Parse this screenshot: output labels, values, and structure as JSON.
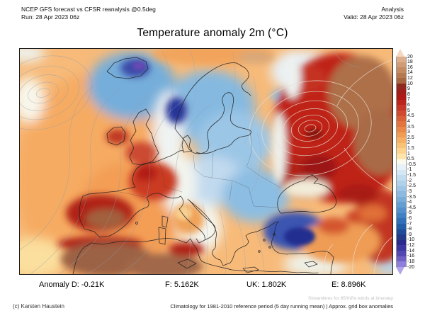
{
  "header": {
    "left_line1": "NCEP GFS forecast vs CFSR reanalysis @0.5deg",
    "left_line2": "Run: 28 Apr 2023 06z",
    "right_line1": "Analysis",
    "right_line2": "Valid: 28 Apr 2023 06z"
  },
  "title": "Temperature anomaly 2m (°C)",
  "chart_data": {
    "type": "heatmap",
    "title": "Temperature anomaly 2m (°C)",
    "units": "K",
    "colorbar_range": [
      -20,
      20
    ],
    "summary_values": {
      "D": -0.21,
      "F": 5.162,
      "UK": 1.802,
      "E": 8.896
    },
    "regions": [
      {
        "area": "North Atlantic",
        "anomaly": "+1 to +3"
      },
      {
        "area": "Iceland",
        "anomaly": "-8 to -14"
      },
      {
        "area": "Scandinavia / Baltic",
        "anomaly": "-2 to -8"
      },
      {
        "area": "Central Europe / Balkans",
        "anomaly": "-1 to -4"
      },
      {
        "area": "Aegean / Turkey",
        "anomaly": "-6 to -10"
      },
      {
        "area": "British Isles / France",
        "anomaly": "+4 to +8"
      },
      {
        "area": "Iberia / North Africa",
        "anomaly": "+8 to +16"
      },
      {
        "area": "Western Russia / Caucasus",
        "anomaly": "+8 to +16"
      }
    ]
  },
  "colorbar": {
    "labels": [
      "20",
      "18",
      "16",
      "14",
      "12",
      "10",
      "9",
      "8",
      "7",
      "6",
      "5",
      "4.5",
      "4",
      "3.5",
      "3",
      "2.5",
      "2",
      "1.5",
      "1",
      "0.5",
      "-0.5",
      "-1",
      "-1.5",
      "-2",
      "-2.5",
      "-3",
      "-3.5",
      "-4",
      "-4.5",
      "-5",
      "-6",
      "-7",
      "-8",
      "-9",
      "-10",
      "-12",
      "-14",
      "-16",
      "-18",
      "-20"
    ],
    "colors": [
      "#dcae8c",
      "#d09c76",
      "#c48b63",
      "#b67a52",
      "#a76841",
      "#8e2a20",
      "#9f1d1a",
      "#ae1916",
      "#ba241c",
      "#c53629",
      "#cf4a2e",
      "#d95f36",
      "#e2743f",
      "#ea8848",
      "#f09c53",
      "#f5b065",
      "#f9c377",
      "#fcd48e",
      "#fee4a8",
      "#fbfaea",
      "#e6f1f8",
      "#d4e7f4",
      "#c2dcef",
      "#b0d1ea",
      "#9ec5e5",
      "#8bb9df",
      "#78acd9",
      "#659ed2",
      "#5390cb",
      "#4181c3",
      "#3070b8",
      "#245ea8",
      "#1f4c98",
      "#223a88",
      "#2b2b8e",
      "#3d35a0",
      "#5348b2",
      "#6f60c6",
      "#8f7eda"
    ],
    "arrow_top_color": "#f4d7c0",
    "arrow_bottom_color": "#b2a4ea"
  },
  "footer": {
    "stats": [
      {
        "label": "Anomaly D:",
        "value": "-0.21K"
      },
      {
        "label": "F:",
        "value": "5.162K"
      },
      {
        "label": "UK:",
        "value": "1.802K"
      },
      {
        "label": "E:",
        "value": "8.896K"
      }
    ],
    "credit": "(c) Karsten Haustein",
    "note_streamlines": "Streamlines for 850hPa winds at timestep",
    "note_climatology": "Climatology for 1981-2010 reference period (5 day running mean) | Approx. grid box anomalies"
  },
  "map": {
    "description": "2m temperature anomaly over Europe and the North Atlantic with 850hPa wind streamlines",
    "palette": {
      "extreme_warm": "#8e2a20",
      "warm": "#e2743f",
      "neutral": "#fbfaea",
      "cool": "#78acd9",
      "extreme_cool": "#2b2b8e"
    }
  }
}
